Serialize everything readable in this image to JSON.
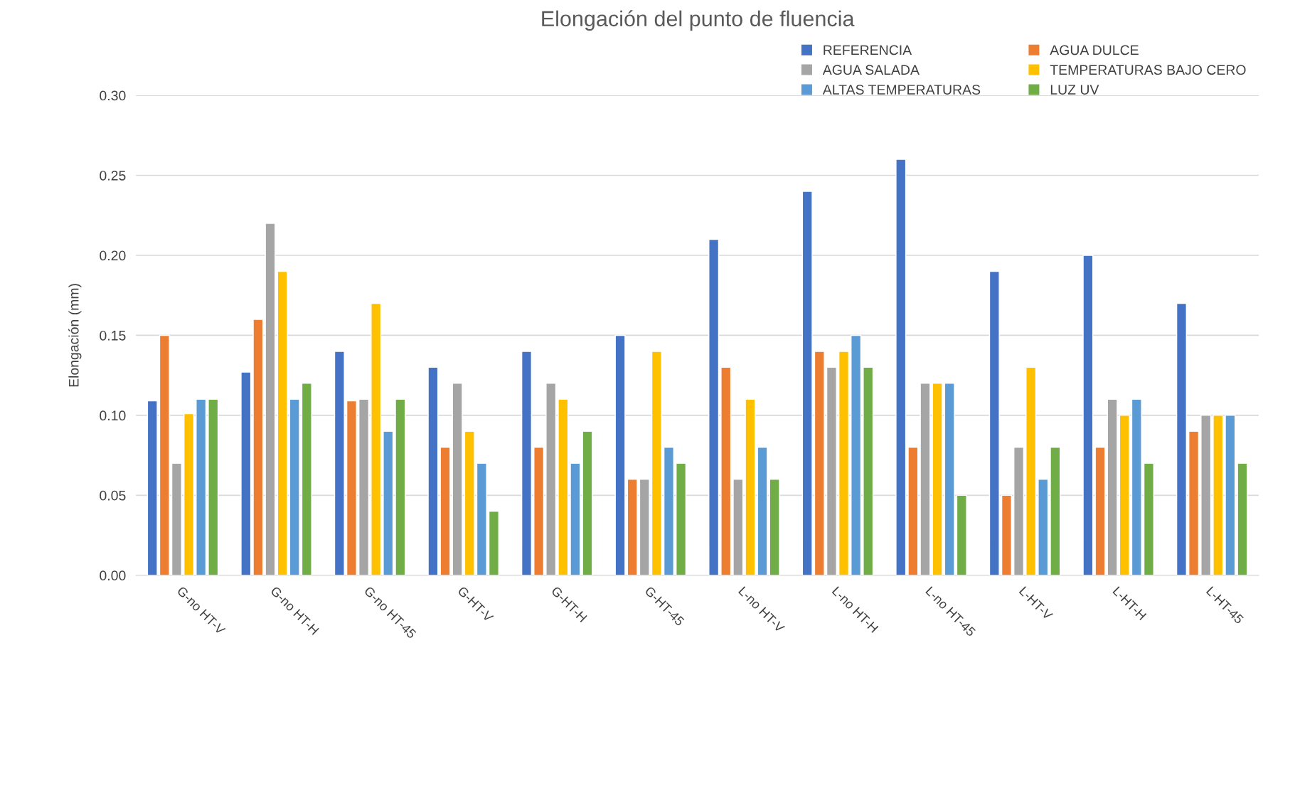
{
  "chart_data": {
    "type": "bar",
    "title": "Elongación del punto de fluencia",
    "ylabel": "Elongación (mm)",
    "categories": [
      "G-no HT-V",
      "G-no HT-H",
      "G-no HT-45",
      "G-HT-V",
      "G-HT-H",
      "G-HT-45",
      "L-no HT-V",
      "L-no HT-H",
      "L-no HT-45",
      "L-HT-V",
      "L-HT-H",
      "L-HT-45"
    ],
    "series": [
      {
        "name": "REFERENCIA",
        "color": "#4472c4",
        "values": [
          0.109,
          0.127,
          0.14,
          0.13,
          0.14,
          0.15,
          0.21,
          0.24,
          0.26,
          0.19,
          0.2,
          0.17
        ]
      },
      {
        "name": "AGUA DULCE",
        "color": "#ed7d31",
        "values": [
          0.15,
          0.16,
          0.109,
          0.08,
          0.08,
          0.06,
          0.13,
          0.14,
          0.08,
          0.05,
          0.08,
          0.09
        ]
      },
      {
        "name": "AGUA SALADA",
        "color": "#a5a5a5",
        "values": [
          0.07,
          0.22,
          0.11,
          0.12,
          0.12,
          0.06,
          0.06,
          0.13,
          0.12,
          0.08,
          0.11,
          0.1
        ]
      },
      {
        "name": "TEMPERATURAS BAJO CERO",
        "color": "#ffc000",
        "values": [
          0.101,
          0.19,
          0.17,
          0.09,
          0.11,
          0.14,
          0.11,
          0.14,
          0.12,
          0.13,
          0.1,
          0.1
        ]
      },
      {
        "name": "ALTAS TEMPERATURAS",
        "color": "#5b9bd5",
        "values": [
          0.11,
          0.11,
          0.09,
          0.07,
          0.07,
          0.08,
          0.08,
          0.15,
          0.12,
          0.06,
          0.11,
          0.1
        ]
      },
      {
        "name": "LUZ UV",
        "color": "#70ad47",
        "values": [
          0.11,
          0.12,
          0.11,
          0.04,
          0.09,
          0.07,
          0.06,
          0.13,
          0.05,
          0.08,
          0.07,
          0.07
        ]
      }
    ],
    "ylim": [
      0,
      0.3
    ],
    "yticks": [
      {
        "value": 0,
        "label": "0.00"
      },
      {
        "value": 0.05,
        "label": "0.05"
      },
      {
        "value": 0.1,
        "label": "0.10"
      },
      {
        "value": 0.15,
        "label": "0.15"
      },
      {
        "value": 0.2,
        "label": "0.20"
      },
      {
        "value": 0.25,
        "label": "0.25"
      },
      {
        "value": 0.3,
        "label": "0.30"
      }
    ],
    "grid": "y",
    "legend": "top right"
  }
}
